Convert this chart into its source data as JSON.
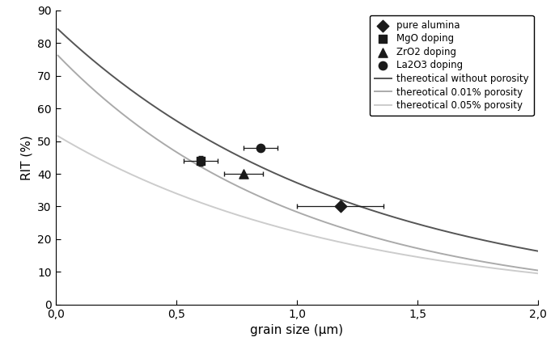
{
  "title": "",
  "xlabel": "grain size (μm)",
  "ylabel": "RIT (%)",
  "xlim": [
    0,
    2.0
  ],
  "ylim": [
    0,
    90
  ],
  "xticks": [
    0.0,
    0.5,
    1.0,
    1.5,
    2.0
  ],
  "xtick_labels": [
    "0,0",
    "0,5",
    "1,0",
    "1,5",
    "2,0"
  ],
  "yticks": [
    0,
    10,
    20,
    30,
    40,
    50,
    60,
    70,
    80,
    90
  ],
  "curve_no_porosity": {
    "color": "#555555",
    "A": 85.0,
    "B": 0.825,
    "label": "thereotical without porosity"
  },
  "curve_001": {
    "color": "#aaaaaa",
    "A": 77.0,
    "B": 1.0,
    "label": "thereotical 0.01% porosity"
  },
  "curve_005": {
    "color": "#cccccc",
    "A": 52.0,
    "B": 0.85,
    "label": "thereotical 0.05% porosity"
  },
  "scatter_color": "#1a1a1a",
  "pure_alumina": {
    "x": [
      1.18
    ],
    "y": [
      30.0
    ],
    "xerr": [
      0.18
    ],
    "yerr": [
      0
    ],
    "marker": "D",
    "size": 55,
    "label": "pure alumina"
  },
  "MgO": {
    "x": [
      0.6
    ],
    "y": [
      44.0
    ],
    "xerr": [
      0.07
    ],
    "yerr": [
      1.5
    ],
    "marker": "s",
    "size": 55,
    "label": "MgO doping"
  },
  "ZrO2": {
    "x": [
      0.78
    ],
    "y": [
      40.0
    ],
    "xerr": [
      0.08
    ],
    "yerr": [
      0
    ],
    "marker": "^",
    "size": 65,
    "label": "ZrO2 doping"
  },
  "La2O3": {
    "x": [
      0.85
    ],
    "y": [
      48.0
    ],
    "xerr": [
      0.07
    ],
    "yerr": [
      0
    ],
    "marker": "o",
    "size": 55,
    "label": "La2O3 doping"
  }
}
